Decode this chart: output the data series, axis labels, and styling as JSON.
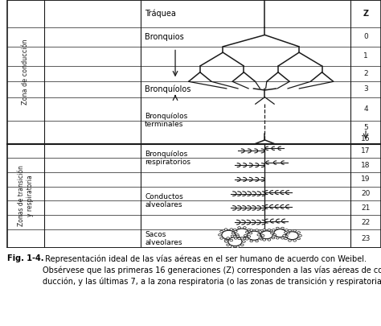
{
  "bg_color": "#f0ede8",
  "line_color": "#1a1a1a",
  "caption_bold": "Fig. 1-4.",
  "caption_text": " Representación ideal de las vías aéreas en el ser humano de acuerdo con Weibel.\nObsérvese que las primeras 16 generaciones (Z) corresponden a las vías aéreas de con-\nducción, y las últimas 7, a la zona respiratoria (o las zonas de transición y respiratoria).",
  "zone1_label": "Zona de conducción",
  "zone2_label": "Zonas de transición\ny respiratoria",
  "z_labels": [
    "Z",
    "0",
    "1",
    "2",
    "3",
    "4",
    "5\n↓\n16",
    "17",
    "18",
    "19",
    "20",
    "21",
    "22",
    "23"
  ],
  "row_labels_text": [
    {
      "text": "Tráquea",
      "rows": [
        0,
        0
      ]
    },
    {
      "text": "Bronquios",
      "rows": [
        1,
        1
      ]
    },
    {
      "text": "Bronquíolos",
      "rows": [
        4,
        4
      ]
    },
    {
      "text": "Bronquíolos\nterminales",
      "rows": [
        5,
        6
      ]
    },
    {
      "text": "Bronquíolos\nrespiratorios",
      "rows": [
        7,
        8
      ]
    },
    {
      "text": "Conductos\nalveolares",
      "rows": [
        10,
        11
      ]
    },
    {
      "text": "Sacos\nalveolares",
      "rows": [
        13,
        13
      ]
    }
  ]
}
